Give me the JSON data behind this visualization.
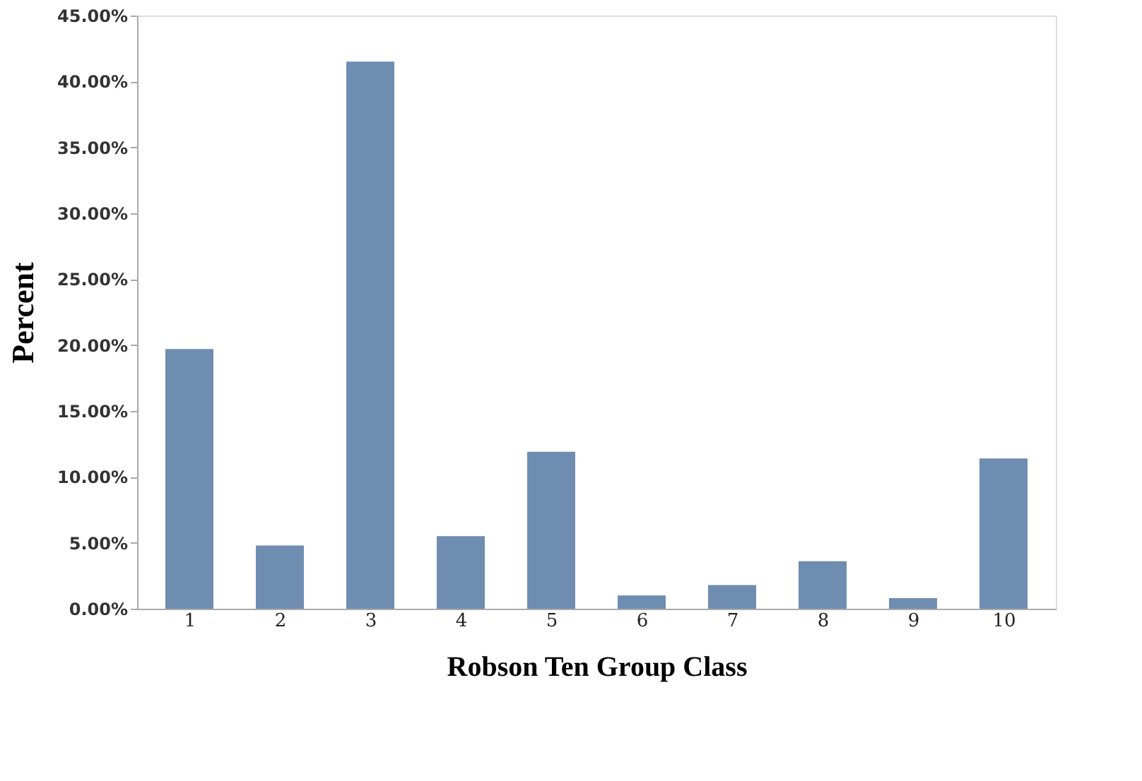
{
  "chart_data": {
    "type": "bar",
    "xlabel": "Robson Ten Group Class",
    "ylabel": "Percent",
    "categories": [
      "1",
      "2",
      "3",
      "4",
      "5",
      "6",
      "7",
      "8",
      "9",
      "10"
    ],
    "values": [
      19.7,
      4.8,
      41.5,
      5.5,
      11.9,
      1.0,
      1.8,
      3.6,
      0.8,
      11.4
    ],
    "color": "#6f8db0",
    "ylim": [
      0,
      45
    ],
    "yticks": [
      {
        "value": 0,
        "label": "0.00%"
      },
      {
        "value": 5,
        "label": "5.00%"
      },
      {
        "value": 10,
        "label": "10.00%"
      },
      {
        "value": 15,
        "label": "15.00%"
      },
      {
        "value": 20,
        "label": "20.00%"
      },
      {
        "value": 25,
        "label": "25.00%"
      },
      {
        "value": 30,
        "label": "30.00%"
      },
      {
        "value": 35,
        "label": "35.00%"
      },
      {
        "value": 40,
        "label": "40.00%"
      },
      {
        "value": 45,
        "label": "45.00%"
      }
    ],
    "grid": false
  }
}
